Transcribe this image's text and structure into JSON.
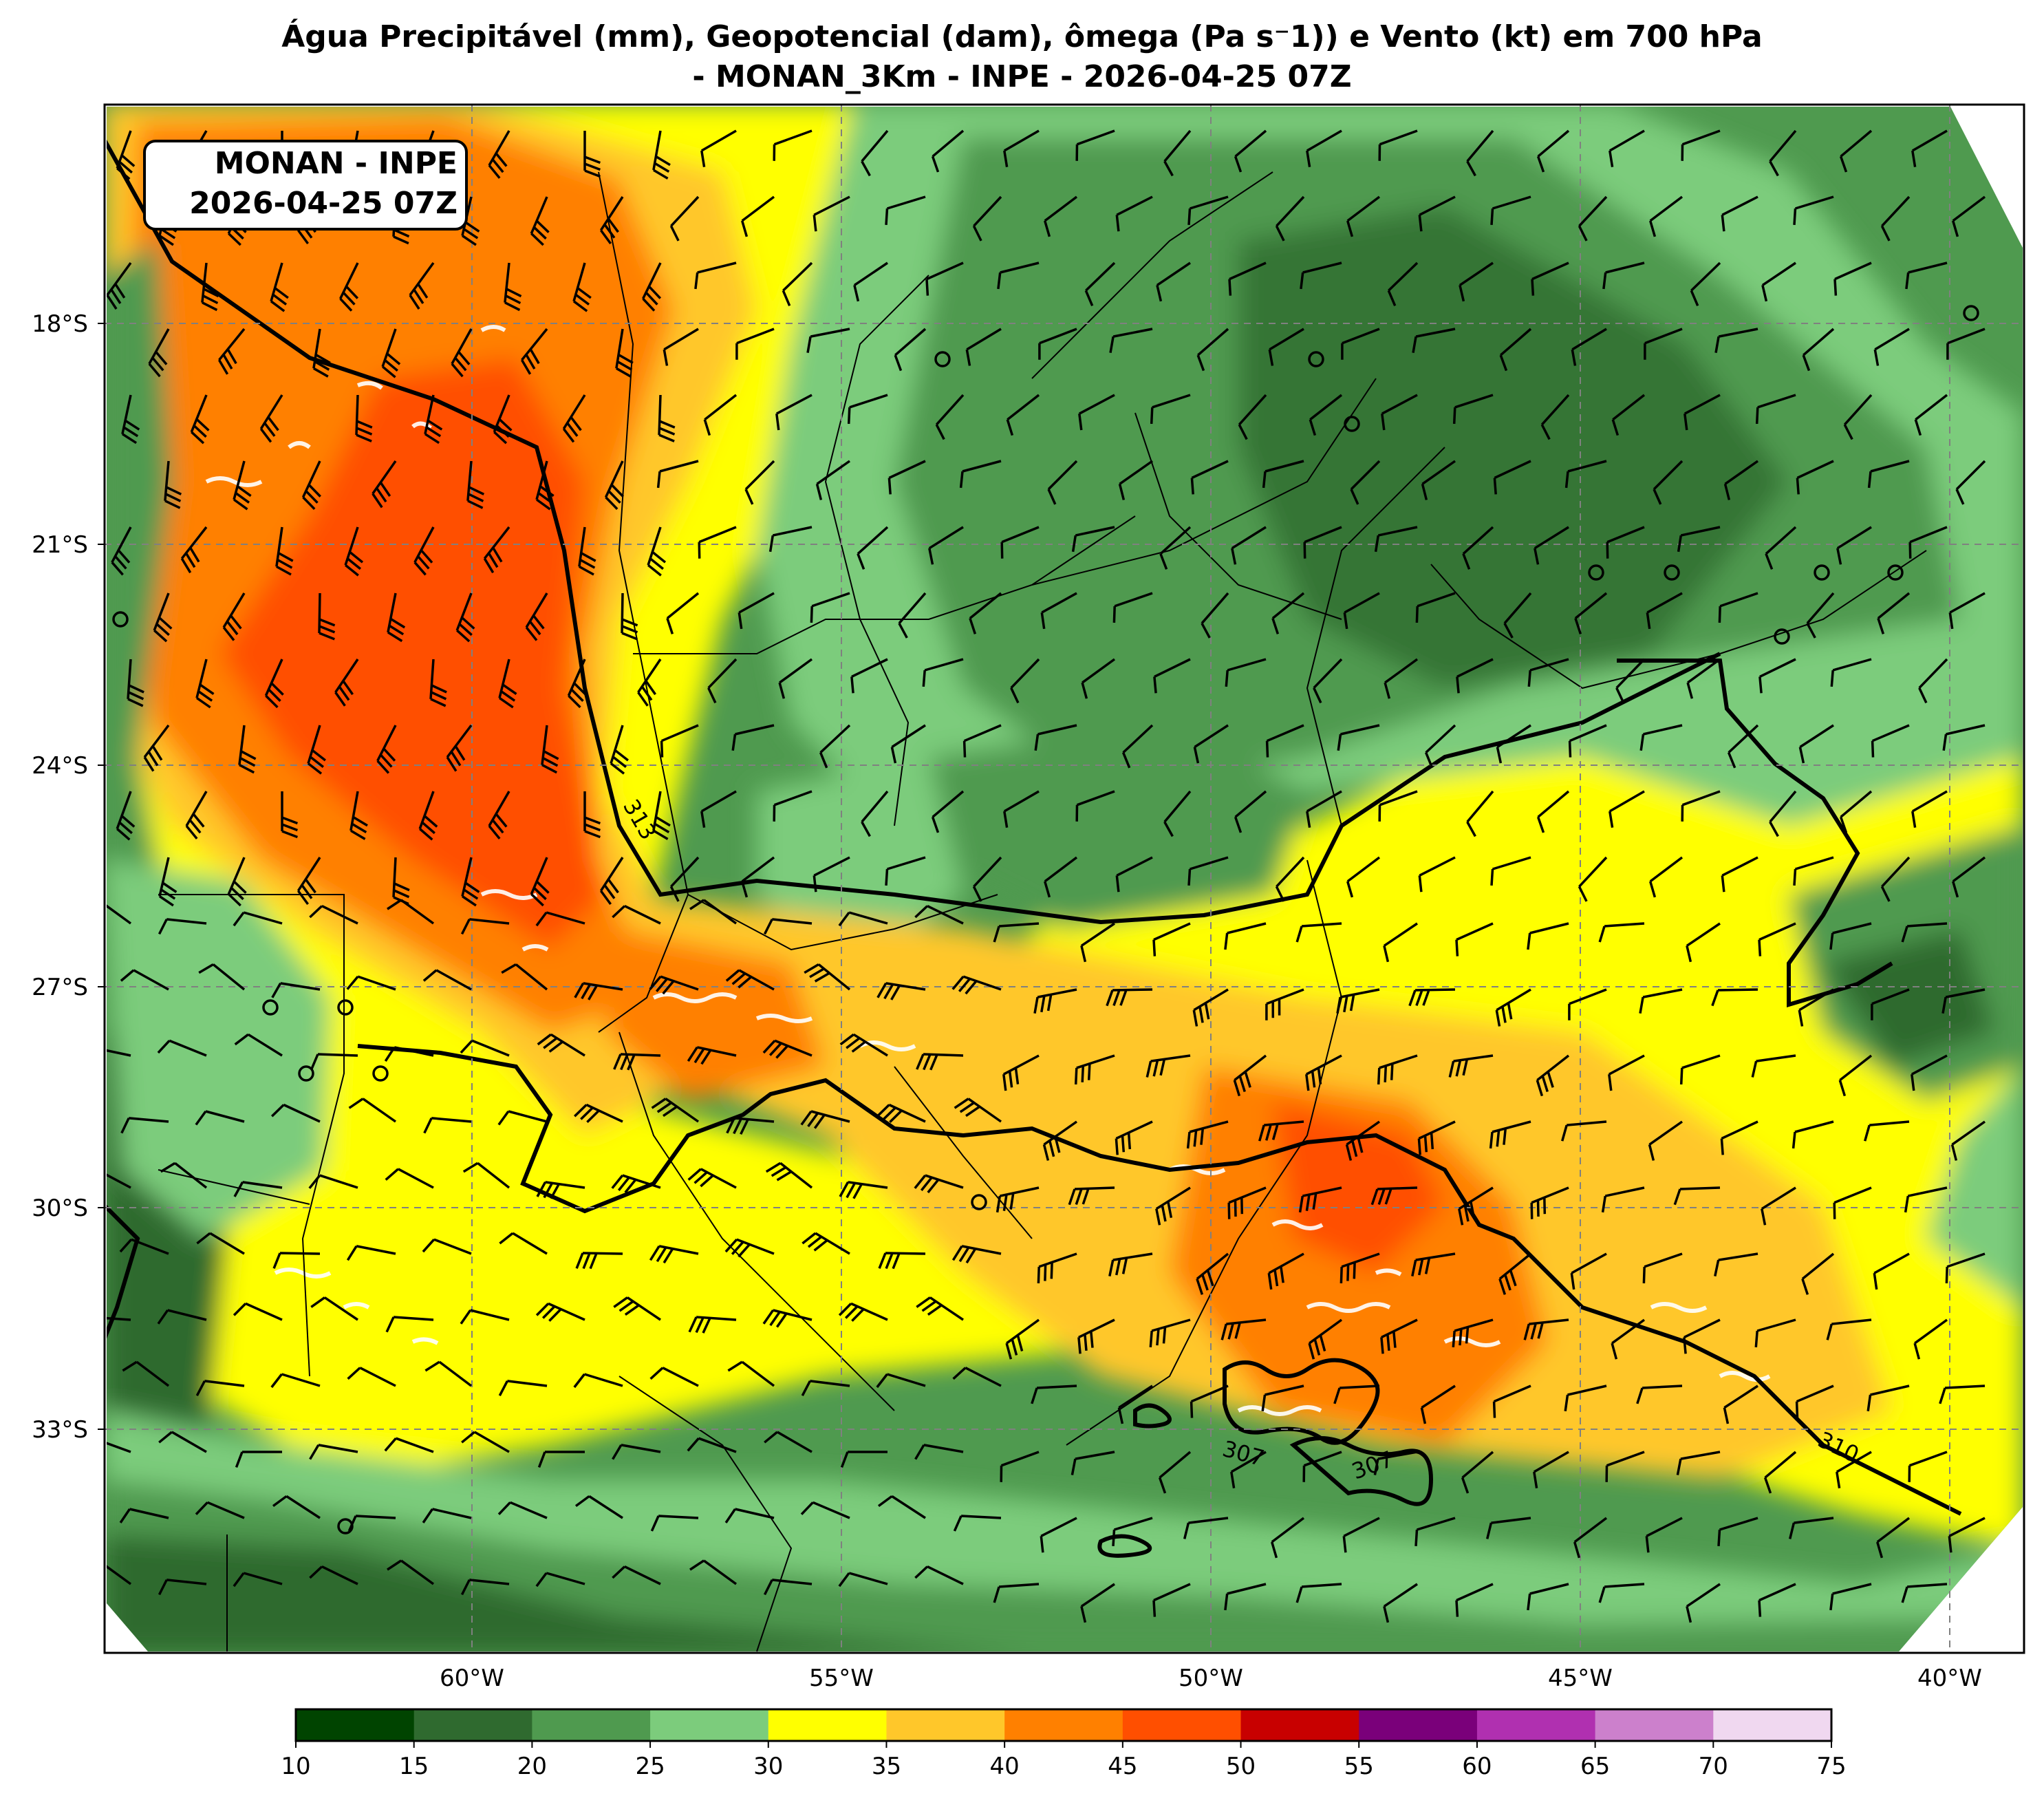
{
  "title": {
    "line1": "Água Precipitável (mm), Geopotencial (dam), ômega (Pa s⁻1)) e Vento (kt) em 700 hPa",
    "line2": "- MONAN_3Km - INPE - 2026-04-25 07Z"
  },
  "info_box": {
    "line1": "MONAN - INPE",
    "line2": "2026-04-25 07Z"
  },
  "lat_ticks": [
    "18°S",
    "21°S",
    "24°S",
    "27°S",
    "30°S",
    "33°S"
  ],
  "lon_ticks": [
    "60°W",
    "55°W",
    "50°W",
    "45°W",
    "40°W"
  ],
  "contour_labels": [
    "313",
    "307",
    "307",
    "310"
  ],
  "colorbar": {
    "ticks": [
      "10",
      "15",
      "20",
      "25",
      "30",
      "35",
      "40",
      "45",
      "50",
      "55",
      "60",
      "65",
      "70",
      "75"
    ],
    "colors": [
      "#004400",
      "#2f6a2f",
      "#4f9a4f",
      "#7ccc7c",
      "#ffff00",
      "#ffc72a",
      "#ff8000",
      "#ff4f00",
      "#c80000",
      "#7a007a",
      "#b030b0",
      "#cc80cc",
      "#f0d8f0"
    ]
  },
  "palette": {
    "green_dark": "#2f6a2f",
    "green_mid": "#4f9a4f",
    "green_light": "#7ccc7c",
    "yellow": "#ffff00",
    "gold": "#ffc72a",
    "orange": "#ff8000",
    "red_orange": "#ff4f00",
    "dark_red": "#c80000",
    "very_dark": "#004400"
  }
}
